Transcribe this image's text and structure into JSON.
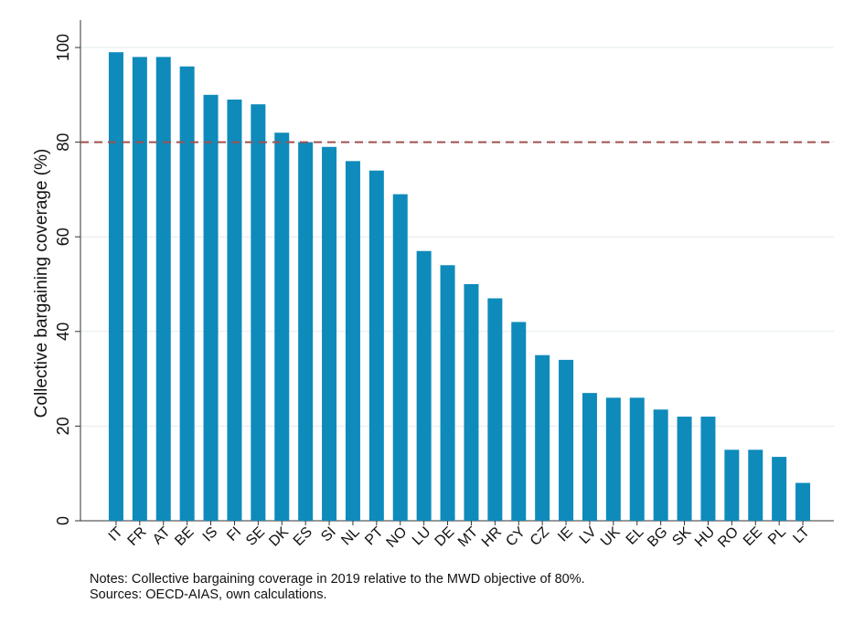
{
  "chart_data": {
    "type": "bar",
    "y_label": "Collective bargaining coverage (%)",
    "categories": [
      "IT",
      "FR",
      "AT",
      "BE",
      "IS",
      "FI",
      "SE",
      "DK",
      "ES",
      "SI",
      "NL",
      "PT",
      "NO",
      "LU",
      "DE",
      "MT",
      "HR",
      "CY",
      "CZ",
      "IE",
      "LV",
      "UK",
      "EL",
      "BG",
      "SK",
      "HU",
      "RO",
      "EE",
      "PL",
      "LT"
    ],
    "values": [
      99,
      98,
      98,
      96,
      90,
      89,
      88,
      82,
      80,
      79,
      76,
      74,
      69,
      57,
      54,
      50,
      47,
      42,
      35,
      34,
      27,
      26,
      26,
      23.5,
      22,
      22,
      15,
      15,
      13.5,
      8
    ],
    "color": "#0e8bbb",
    "ylim": [
      0,
      100
    ],
    "yticks": [
      0,
      20,
      40,
      60,
      80,
      100
    ],
    "grid": true,
    "reference_line": {
      "value": 80,
      "color": "#a0504f"
    },
    "notes": [
      "Notes: Collective bargaining coverage in 2019 relative to the MWD objective of 80%.",
      "Sources: OECD-AIAS, own calculations."
    ]
  }
}
